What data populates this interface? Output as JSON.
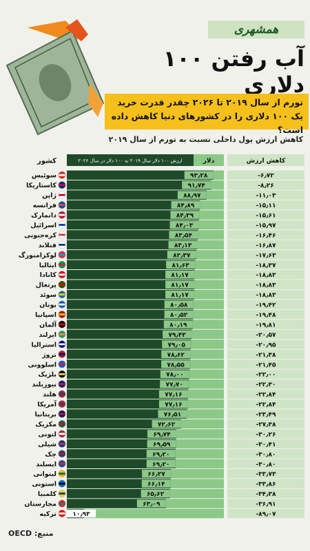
{
  "header": {
    "logo": "همشهری",
    "title": "آب رفتن ۱۰۰ دلاری",
    "subtitle": "تورم از سال ۲۰۱۹ تا ۲۰۲۶ چقدر قدرت خرید یک ۱۰۰ دلاری را در کشورهای دنیا کاهش داده است؟"
  },
  "chart_data": {
    "type": "bar",
    "orientation": "horizontal",
    "title": "کاهش ارزش پول داخلی نسبت به تورم از سال ۲۰۱۹",
    "category_label": "کشور",
    "bar_header": "ارزش ۱۰۰ دلار سال ۲۰۱۹ به ۱۰۰ دلار در سال ۲۰۲۶",
    "categories": [
      "سوئیس",
      "کاستاریکا",
      "ژاپن",
      "فرانسه",
      "دانمارک",
      "اسرائیل",
      "کره‌جنوبی",
      "فنلاند",
      "لوکزامبورگ",
      "ایتالیا",
      "کانادا",
      "پرتغال",
      "سوئد",
      "یونان",
      "اسپانیا",
      "آلمان",
      "ایرلند",
      "استرالیا",
      "نروژ",
      "اسلوونی",
      "بلژیک",
      "نیوزیلند",
      "هلند",
      "آمریکا",
      "بریتانیا",
      "مکزیک",
      "لتونی",
      "شیلی",
      "چک",
      "ایسلند",
      "لیتوانی",
      "استونی",
      "کلمبیا",
      "مجارستان",
      "ترکیه"
    ],
    "xlim": [
      0,
      100
    ],
    "series": [
      {
        "name": "دلار",
        "color": "#1e4a2a",
        "values": [
          93.28,
          91.74,
          88.97,
          84.89,
          84.39,
          84.03,
          83.54,
          83.13,
          82.37,
          81.63,
          81.17,
          81.17,
          81.17,
          80.58,
          80.52,
          80.19,
          79.43,
          79.05,
          78.62,
          78.55,
          78.0,
          77.7,
          77.16,
          77.16,
          76.51,
          72.62,
          69.74,
          69.59,
          69.2,
          69.2,
          66.27,
          66.14,
          65.62,
          63.09,
          10.93
        ],
        "value_labels": [
          "۹۳٫۲۸",
          "۹۱٫۷۴",
          "۸۸٫۹۷",
          "۸۴٫۸۹",
          "۸۴٫۳۹",
          "۸۴٫۰۳",
          "۸۳٫۵۴",
          "۸۳٫۱۳",
          "۸۲٫۳۷",
          "۸۱٫۶۳",
          "۸۱٫۱۷",
          "۸۱٫۱۷",
          "۸۱٫۱۷",
          "۸۰٫۵۸",
          "۸۰٫۵۲",
          "۸۰٫۱۹",
          "۷۹٫۴۳",
          "۷۹٫۰۵",
          "۷۸٫۶۲",
          "۷۸٫۵۵",
          "۷۸٫۰۰",
          "۷۷٫۷۰",
          "۷۷٫۱۶",
          "۷۷٫۱۶",
          "۷۶٫۵۱",
          "۷۲٫۶۲",
          "۶۹٫۷۴",
          "۶۹٫۵۹",
          "۶۹٫۲۰",
          "۶۹٫۲۰",
          "۶۶٫۲۷",
          "۶۶٫۱۴",
          "۶۵٫۶۲",
          "۶۳٫۰۹",
          "۱۰٫۹۳"
        ]
      },
      {
        "name": "کاهش ارزش",
        "color": "#cfe5c6",
        "values": [
          -6.72,
          -8.26,
          -11.03,
          -15.11,
          -15.61,
          -15.97,
          -16.46,
          -16.87,
          -17.63,
          -18.37,
          -18.83,
          -18.83,
          -18.83,
          -19.42,
          -19.48,
          -19.81,
          -20.57,
          -20.95,
          -21.38,
          -21.45,
          -22.0,
          -22.3,
          -22.84,
          -22.84,
          -23.49,
          -27.38,
          -30.26,
          -30.41,
          -30.8,
          -30.8,
          -33.73,
          -33.86,
          -34.38,
          -36.91,
          -89.07
        ],
        "value_labels": [
          "-۶٫۷۲",
          "-۸٫۲۶",
          "-۱۱٫۰۳",
          "-۱۵٫۱۱",
          "-۱۵٫۶۱",
          "-۱۵٫۹۷",
          "-۱۶٫۴۶",
          "-۱۶٫۸۷",
          "-۱۷٫۶۳",
          "-۱۸٫۳۷",
          "-۱۸٫۸۳",
          "-۱۸٫۸۳",
          "-۱۸٫۸۳",
          "-۱۹٫۴۲",
          "-۱۹٫۴۸",
          "-۱۹٫۸۱",
          "-۲۰٫۵۷",
          "-۲۰٫۹۵",
          "-۲۱٫۳۸",
          "-۲۱٫۴۵",
          "-۲۲٫۰۰",
          "-۲۲٫۳۰",
          "-۲۲٫۸۴",
          "-۲۲٫۸۴",
          "-۲۳٫۴۹",
          "-۲۷٫۳۸",
          "-۳۰٫۲۶",
          "-۳۰٫۴۱",
          "-۳۰٫۸۰",
          "-۳۰٫۸۰",
          "-۳۳٫۷۳",
          "-۳۳٫۸۶",
          "-۳۴٫۳۸",
          "-۳۶٫۹۱",
          "-۸۹٫۰۷"
        ]
      }
    ],
    "track_color": "#8cc887",
    "source": "منبع: OECD"
  }
}
